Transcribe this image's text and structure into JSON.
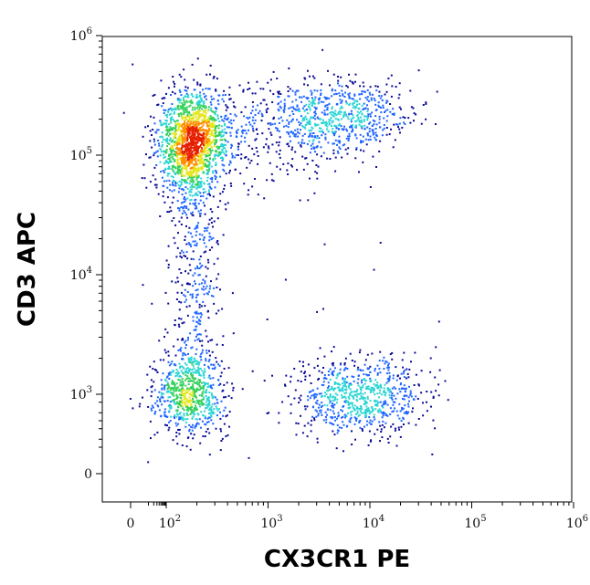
{
  "chart_data": {
    "type": "scatter",
    "subtype": "flow-cytometry-density-dot-plot",
    "xlabel": "CX3CR1 PE",
    "ylabel": "CD3 APC",
    "x_scale": "biexponential (log)",
    "y_scale": "biexponential (log)",
    "xlim": [
      -50,
      1000000
    ],
    "ylim": [
      -50,
      1000000
    ],
    "x_ticks": [
      {
        "value": 0,
        "base": "0",
        "exp": ""
      },
      {
        "value": 100,
        "base": "10",
        "exp": "2"
      },
      {
        "value": 1000,
        "base": "10",
        "exp": "3"
      },
      {
        "value": 10000,
        "base": "10",
        "exp": "4"
      },
      {
        "value": 100000,
        "base": "10",
        "exp": "5"
      },
      {
        "value": 1000000,
        "base": "10",
        "exp": "6"
      }
    ],
    "y_ticks": [
      {
        "value": 0,
        "base": "0",
        "exp": ""
      },
      {
        "value": 1000,
        "base": "10",
        "exp": "3"
      },
      {
        "value": 10000,
        "base": "10",
        "exp": "4"
      },
      {
        "value": 100000,
        "base": "10",
        "exp": "5"
      },
      {
        "value": 1000000,
        "base": "10",
        "exp": "6"
      }
    ],
    "grid": false,
    "density_colors": [
      "#0a0a96",
      "#1e64ff",
      "#2ad4d4",
      "#34d05a",
      "#e6e61e",
      "#ff8c00",
      "#e61e00"
    ],
    "populations": [
      {
        "id": "cd3pos-cx3cr1neg",
        "x_center": 180,
        "y_center": 130000,
        "relative_events": 1700,
        "density": "highest"
      },
      {
        "id": "cd3pos-cx3cr1pos",
        "x_center": 5000,
        "y_center": 220000,
        "relative_events": 650,
        "density": "medium"
      },
      {
        "id": "cd3neg-cx3cr1neg",
        "x_center": 160,
        "y_center": 850,
        "relative_events": 700,
        "density": "medium"
      },
      {
        "id": "cd3neg-cx3cr1pos",
        "x_center": 8000,
        "y_center": 800,
        "relative_events": 750,
        "density": "medium"
      },
      {
        "id": "bridge-cd3",
        "x_center": 190,
        "y_range": [
          1500,
          60000
        ],
        "relative_events": 380,
        "density": "low"
      },
      {
        "id": "bridge-cx3cr1-high-cd3",
        "x_range": [
          350,
          3000
        ],
        "y_center": 150000,
        "relative_events": 220,
        "density": "low"
      }
    ]
  }
}
